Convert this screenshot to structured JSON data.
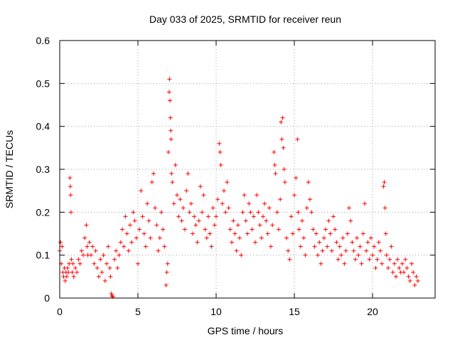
{
  "chart_data": {
    "type": "scatter",
    "title": "Day 033 of 2025, SRMTID for receiver reun",
    "xlabel": "GPS time / hours",
    "ylabel": "SRMTID / TECUs",
    "xlim": [
      0,
      24
    ],
    "ylim": [
      0,
      0.6
    ],
    "x_ticks": [
      0,
      5,
      10,
      15,
      20
    ],
    "y_ticks": [
      0,
      0.1,
      0.2,
      0.3,
      0.4,
      0.5,
      0.6
    ],
    "x_tick_labels": [
      "0",
      "5",
      "10",
      "15",
      "20"
    ],
    "y_tick_labels": [
      "0",
      "0.1",
      "0.2",
      "0.3",
      "0.4",
      "0.5",
      "0.6"
    ],
    "grid": true,
    "marker": "+",
    "marker_color": "#ff0000",
    "series": [
      {
        "name": "SRMTID",
        "points": [
          [
            0.0,
            0.11
          ],
          [
            0.05,
            0.13
          ],
          [
            0.1,
            0.08
          ],
          [
            0.15,
            0.12
          ],
          [
            0.2,
            0.06
          ],
          [
            0.25,
            0.05
          ],
          [
            0.3,
            0.07
          ],
          [
            0.35,
            0.04
          ],
          [
            0.4,
            0.06
          ],
          [
            0.45,
            0.05
          ],
          [
            0.5,
            0.07
          ],
          [
            0.55,
            0.06
          ],
          [
            0.6,
            0.08
          ],
          [
            0.65,
            0.28
          ],
          [
            0.68,
            0.26
          ],
          [
            0.7,
            0.24
          ],
          [
            0.72,
            0.2
          ],
          [
            0.75,
            0.09
          ],
          [
            0.8,
            0.06
          ],
          [
            0.85,
            0.08
          ],
          [
            0.9,
            0.05
          ],
          [
            1.0,
            0.07
          ],
          [
            1.1,
            0.06
          ],
          [
            1.2,
            0.09
          ],
          [
            1.3,
            0.08
          ],
          [
            1.4,
            0.11
          ],
          [
            1.5,
            0.1
          ],
          [
            1.6,
            0.14
          ],
          [
            1.7,
            0.17
          ],
          [
            1.75,
            0.12
          ],
          [
            1.8,
            0.1
          ],
          [
            1.9,
            0.13
          ],
          [
            2.0,
            0.1
          ],
          [
            2.1,
            0.12
          ],
          [
            2.2,
            0.08
          ],
          [
            2.3,
            0.11
          ],
          [
            2.4,
            0.07
          ],
          [
            2.5,
            0.05
          ],
          [
            2.6,
            0.09
          ],
          [
            2.7,
            0.06
          ],
          [
            2.8,
            0.1
          ],
          [
            2.9,
            0.04
          ],
          [
            3.0,
            0.08
          ],
          [
            3.1,
            0.12
          ],
          [
            3.2,
            0.07
          ],
          [
            3.25,
            0.05
          ],
          [
            3.3,
            0.01
          ],
          [
            3.35,
            0.005
          ],
          [
            3.4,
            0.003
          ],
          [
            3.5,
            0.09
          ],
          [
            3.6,
            0.11
          ],
          [
            3.7,
            0.07
          ],
          [
            3.8,
            0.1
          ],
          [
            3.9,
            0.13
          ],
          [
            4.0,
            0.16
          ],
          [
            4.1,
            0.12
          ],
          [
            4.2,
            0.19
          ],
          [
            4.3,
            0.15
          ],
          [
            4.4,
            0.11
          ],
          [
            4.5,
            0.17
          ],
          [
            4.6,
            0.13
          ],
          [
            4.7,
            0.2
          ],
          [
            4.8,
            0.18
          ],
          [
            4.9,
            0.14
          ],
          [
            5.0,
            0.08
          ],
          [
            5.1,
            0.16
          ],
          [
            5.2,
            0.25
          ],
          [
            5.3,
            0.19
          ],
          [
            5.4,
            0.15
          ],
          [
            5.5,
            0.12
          ],
          [
            5.6,
            0.22
          ],
          [
            5.7,
            0.18
          ],
          [
            5.8,
            0.14
          ],
          [
            5.9,
            0.27
          ],
          [
            6.0,
            0.29
          ],
          [
            6.1,
            0.21
          ],
          [
            6.2,
            0.17
          ],
          [
            6.3,
            0.11
          ],
          [
            6.4,
            0.14
          ],
          [
            6.5,
            0.2
          ],
          [
            6.6,
            0.16
          ],
          [
            6.7,
            0.12
          ],
          [
            6.8,
            0.03
          ],
          [
            6.85,
            0.06
          ],
          [
            6.9,
            0.08
          ],
          [
            6.95,
            0.34
          ],
          [
            7.0,
            0.48
          ],
          [
            7.02,
            0.51
          ],
          [
            7.05,
            0.46
          ],
          [
            7.08,
            0.42
          ],
          [
            7.1,
            0.39
          ],
          [
            7.12,
            0.37
          ],
          [
            7.15,
            0.29
          ],
          [
            7.2,
            0.27
          ],
          [
            7.3,
            0.22
          ],
          [
            7.4,
            0.31
          ],
          [
            7.5,
            0.24
          ],
          [
            7.6,
            0.19
          ],
          [
            7.7,
            0.23
          ],
          [
            7.8,
            0.18
          ],
          [
            7.9,
            0.21
          ],
          [
            8.0,
            0.16
          ],
          [
            8.1,
            0.25
          ],
          [
            8.2,
            0.29
          ],
          [
            8.3,
            0.2
          ],
          [
            8.4,
            0.22
          ],
          [
            8.5,
            0.15
          ],
          [
            8.6,
            0.19
          ],
          [
            8.7,
            0.17
          ],
          [
            8.8,
            0.13
          ],
          [
            8.9,
            0.18
          ],
          [
            9.0,
            0.26
          ],
          [
            9.1,
            0.2
          ],
          [
            9.2,
            0.24
          ],
          [
            9.3,
            0.16
          ],
          [
            9.4,
            0.14
          ],
          [
            9.5,
            0.19
          ],
          [
            9.6,
            0.15
          ],
          [
            9.7,
            0.12
          ],
          [
            9.8,
            0.21
          ],
          [
            9.9,
            0.17
          ],
          [
            10.0,
            0.19
          ],
          [
            10.1,
            0.23
          ],
          [
            10.2,
            0.36
          ],
          [
            10.25,
            0.34
          ],
          [
            10.3,
            0.31
          ],
          [
            10.4,
            0.22
          ],
          [
            10.5,
            0.25
          ],
          [
            10.6,
            0.2
          ],
          [
            10.7,
            0.27
          ],
          [
            10.8,
            0.21
          ],
          [
            10.9,
            0.16
          ],
          [
            11.0,
            0.13
          ],
          [
            11.1,
            0.18
          ],
          [
            11.2,
            0.15
          ],
          [
            11.3,
            0.11
          ],
          [
            11.4,
            0.17
          ],
          [
            11.5,
            0.14
          ],
          [
            11.6,
            0.1
          ],
          [
            11.7,
            0.2
          ],
          [
            11.8,
            0.24
          ],
          [
            11.9,
            0.18
          ],
          [
            12.0,
            0.15
          ],
          [
            12.1,
            0.22
          ],
          [
            12.2,
            0.2
          ],
          [
            12.3,
            0.16
          ],
          [
            12.4,
            0.19
          ],
          [
            12.5,
            0.13
          ],
          [
            12.6,
            0.24
          ],
          [
            12.7,
            0.2
          ],
          [
            12.8,
            0.17
          ],
          [
            12.9,
            0.14
          ],
          [
            13.0,
            0.19
          ],
          [
            13.1,
            0.22
          ],
          [
            13.2,
            0.18
          ],
          [
            13.3,
            0.15
          ],
          [
            13.4,
            0.21
          ],
          [
            13.5,
            0.12
          ],
          [
            13.6,
            0.17
          ],
          [
            13.7,
            0.34
          ],
          [
            13.75,
            0.31
          ],
          [
            13.8,
            0.29
          ],
          [
            13.9,
            0.2
          ],
          [
            14.0,
            0.16
          ],
          [
            14.1,
            0.23
          ],
          [
            14.15,
            0.41
          ],
          [
            14.2,
            0.37
          ],
          [
            14.25,
            0.42
          ],
          [
            14.3,
            0.35
          ],
          [
            14.35,
            0.3
          ],
          [
            14.4,
            0.27
          ],
          [
            14.5,
            0.14
          ],
          [
            14.6,
            0.11
          ],
          [
            14.7,
            0.09
          ],
          [
            14.8,
            0.19
          ],
          [
            14.9,
            0.15
          ],
          [
            15.0,
            0.24
          ],
          [
            15.1,
            0.28
          ],
          [
            15.2,
            0.37
          ],
          [
            15.25,
            0.2
          ],
          [
            15.3,
            0.16
          ],
          [
            15.4,
            0.12
          ],
          [
            15.5,
            0.18
          ],
          [
            15.6,
            0.14
          ],
          [
            15.7,
            0.1
          ],
          [
            15.8,
            0.21
          ],
          [
            15.9,
            0.27
          ],
          [
            16.0,
            0.23
          ],
          [
            16.1,
            0.2
          ],
          [
            16.2,
            0.16
          ],
          [
            16.3,
            0.12
          ],
          [
            16.4,
            0.15
          ],
          [
            16.5,
            0.1
          ],
          [
            16.6,
            0.13
          ],
          [
            16.7,
            0.08
          ],
          [
            16.8,
            0.11
          ],
          [
            16.9,
            0.14
          ],
          [
            17.0,
            0.16
          ],
          [
            17.1,
            0.12
          ],
          [
            17.2,
            0.18
          ],
          [
            17.3,
            0.15
          ],
          [
            17.4,
            0.11
          ],
          [
            17.5,
            0.19
          ],
          [
            17.6,
            0.16
          ],
          [
            17.7,
            0.13
          ],
          [
            17.8,
            0.09
          ],
          [
            17.9,
            0.12
          ],
          [
            18.0,
            0.1
          ],
          [
            18.1,
            0.14
          ],
          [
            18.2,
            0.08
          ],
          [
            18.3,
            0.11
          ],
          [
            18.4,
            0.15
          ],
          [
            18.5,
            0.21
          ],
          [
            18.6,
            0.18
          ],
          [
            18.7,
            0.13
          ],
          [
            18.8,
            0.11
          ],
          [
            18.9,
            0.09
          ],
          [
            19.0,
            0.14
          ],
          [
            19.1,
            0.1
          ],
          [
            19.2,
            0.12
          ],
          [
            19.3,
            0.08
          ],
          [
            19.4,
            0.15
          ],
          [
            19.5,
            0.22
          ],
          [
            19.6,
            0.11
          ],
          [
            19.7,
            0.13
          ],
          [
            19.8,
            0.09
          ],
          [
            19.9,
            0.14
          ],
          [
            20.0,
            0.1
          ],
          [
            20.1,
            0.12
          ],
          [
            20.2,
            0.07
          ],
          [
            20.3,
            0.09
          ],
          [
            20.4,
            0.13
          ],
          [
            20.5,
            0.11
          ],
          [
            20.6,
            0.08
          ],
          [
            20.7,
            0.26
          ],
          [
            20.75,
            0.27
          ],
          [
            20.8,
            0.21
          ],
          [
            20.85,
            0.15
          ],
          [
            20.9,
            0.1
          ],
          [
            21.0,
            0.07
          ],
          [
            21.1,
            0.09
          ],
          [
            21.2,
            0.12
          ],
          [
            21.3,
            0.06
          ],
          [
            21.4,
            0.08
          ],
          [
            21.5,
            0.05
          ],
          [
            21.6,
            0.09
          ],
          [
            21.7,
            0.07
          ],
          [
            21.8,
            0.06
          ],
          [
            21.9,
            0.08
          ],
          [
            22.0,
            0.06
          ],
          [
            22.1,
            0.09
          ],
          [
            22.2,
            0.07
          ],
          [
            22.3,
            0.05
          ],
          [
            22.4,
            0.04
          ],
          [
            22.5,
            0.08
          ],
          [
            22.6,
            0.06
          ],
          [
            22.7,
            0.03
          ],
          [
            22.8,
            0.05
          ],
          [
            22.9,
            0.04
          ]
        ]
      }
    ]
  }
}
